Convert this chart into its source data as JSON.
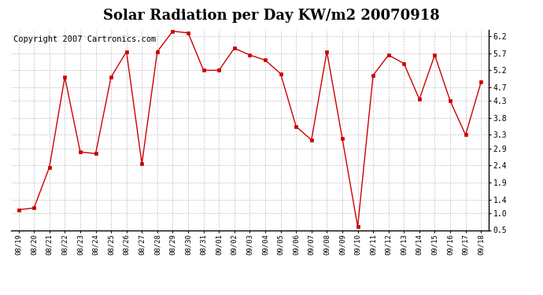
{
  "title": "Solar Radiation per Day KW/m2 20070918",
  "copyright": "Copyright 2007 Cartronics.com",
  "labels": [
    "08/19",
    "08/20",
    "08/21",
    "08/22",
    "08/23",
    "08/24",
    "08/25",
    "08/26",
    "08/27",
    "08/28",
    "08/29",
    "08/30",
    "08/31",
    "09/01",
    "09/02",
    "09/03",
    "09/04",
    "09/05",
    "09/06",
    "09/07",
    "09/08",
    "09/09",
    "09/10",
    "09/11",
    "09/12",
    "09/13",
    "09/14",
    "09/15",
    "09/16",
    "09/17",
    "09/18"
  ],
  "values": [
    1.1,
    1.15,
    2.35,
    5.0,
    2.8,
    2.75,
    5.0,
    5.75,
    2.45,
    5.75,
    6.35,
    6.3,
    5.2,
    5.2,
    5.85,
    5.65,
    5.5,
    5.1,
    3.55,
    3.15,
    5.75,
    3.2,
    0.6,
    5.05,
    5.65,
    5.4,
    4.35,
    5.65,
    4.3,
    3.3,
    4.85
  ],
  "line_color": "#cc0000",
  "marker": "s",
  "marker_size": 3,
  "bg_color": "#ffffff",
  "plot_bg_color": "#ffffff",
  "grid_color": "#bbbbbb",
  "ylim": [
    0.5,
    6.4
  ],
  "yticks": [
    0.5,
    1.0,
    1.4,
    1.9,
    2.4,
    2.9,
    3.3,
    3.8,
    4.3,
    4.7,
    5.2,
    5.7,
    6.2
  ],
  "title_fontsize": 13,
  "copyright_fontsize": 7.5
}
